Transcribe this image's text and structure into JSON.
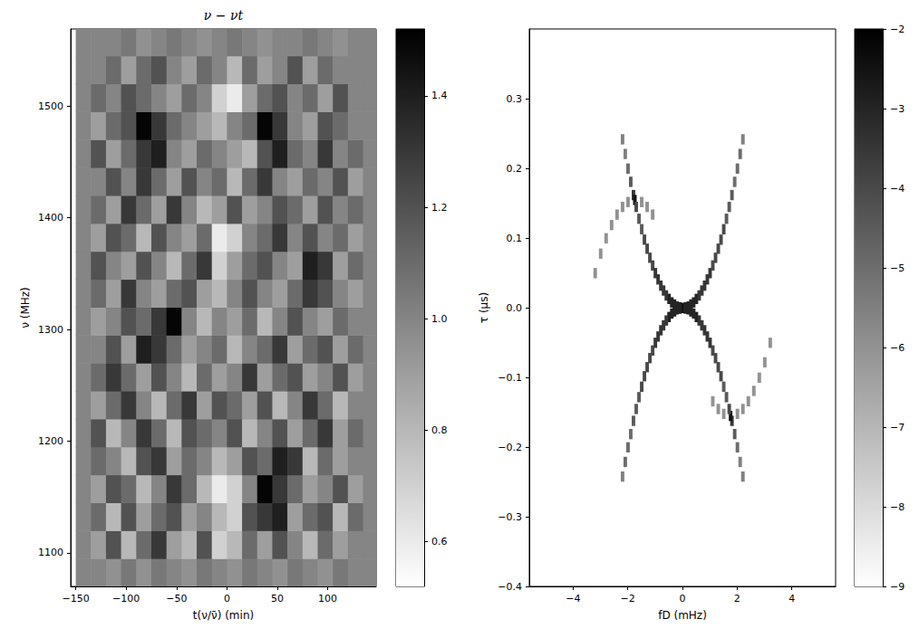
{
  "chart_data": [
    {
      "type": "heatmap",
      "title": "ν − νt",
      "x_label": "t(ν/ν̄) (min)",
      "y_label": "ν (MHz)",
      "xlim": [
        -155,
        148
      ],
      "xticks": [
        {
          "value": -150,
          "label": "−150"
        },
        {
          "value": -100,
          "label": "−100"
        },
        {
          "value": -50,
          "label": "−50"
        },
        0,
        50,
        100
      ],
      "ylim": [
        1070,
        1569
      ],
      "yticks": [
        1100,
        1200,
        1300,
        1400,
        1500
      ],
      "x": [
        -142.5,
        -127.5,
        -112.5,
        -97.5,
        -82.5,
        -67.5,
        -52.5,
        -37.5,
        -22.5,
        -7.5,
        7.5,
        22.5,
        37.5,
        52.5,
        67.5,
        82.5,
        97.5,
        112.5,
        127.5,
        142.5
      ],
      "y": [
        1082.5,
        1107.5,
        1132.5,
        1157.5,
        1182.5,
        1207.5,
        1232.5,
        1257.5,
        1282.5,
        1307.5,
        1332.5,
        1357.5,
        1382.5,
        1407.5,
        1432.5,
        1457.5,
        1482.5,
        1507.5,
        1532.5,
        1557.5
      ],
      "z": [
        [
          1.0,
          1.0,
          0.95,
          1.05,
          0.95,
          1.05,
          1.0,
          0.95,
          1.05,
          1.0,
          0.95,
          1.05,
          1.0,
          0.95,
          1.05,
          1.0,
          0.95,
          1.05,
          1.0,
          1.0
        ],
        [
          1.0,
          0.9,
          1.2,
          0.8,
          1.1,
          1.3,
          0.9,
          0.8,
          1.2,
          0.7,
          0.8,
          1.1,
          0.9,
          1.2,
          1.0,
          0.8,
          1.1,
          0.9,
          1.0,
          1.0
        ],
        [
          1.0,
          1.1,
          0.8,
          1.2,
          0.9,
          1.1,
          1.2,
          0.9,
          1.0,
          0.8,
          0.7,
          1.2,
          1.3,
          1.4,
          0.9,
          1.1,
          1.2,
          0.8,
          1.1,
          1.0
        ],
        [
          1.0,
          0.9,
          1.2,
          1.1,
          0.8,
          1.0,
          1.3,
          1.1,
          0.8,
          0.6,
          0.7,
          1.0,
          1.5,
          1.3,
          1.1,
          0.9,
          1.0,
          1.2,
          0.9,
          1.0
        ],
        [
          1.0,
          1.1,
          1.0,
          0.8,
          1.2,
          1.3,
          0.9,
          1.1,
          1.0,
          0.8,
          0.9,
          1.2,
          1.1,
          1.4,
          1.3,
          0.8,
          1.1,
          0.9,
          1.0,
          1.0
        ],
        [
          1.0,
          1.2,
          0.8,
          1.0,
          1.3,
          1.1,
          0.8,
          1.2,
          1.1,
          1.0,
          1.2,
          0.8,
          1.0,
          1.2,
          0.9,
          1.1,
          1.3,
          0.9,
          1.1,
          1.0
        ],
        [
          1.0,
          0.9,
          1.1,
          1.3,
          1.0,
          0.8,
          1.1,
          1.3,
          0.9,
          1.2,
          1.1,
          0.9,
          1.2,
          0.8,
          1.0,
          1.3,
          1.1,
          0.8,
          1.0,
          1.0
        ],
        [
          1.0,
          1.1,
          1.3,
          1.1,
          0.9,
          1.2,
          1.0,
          0.8,
          1.1,
          0.9,
          1.0,
          1.3,
          0.9,
          1.1,
          1.2,
          0.9,
          1.0,
          1.2,
          0.9,
          1.0
        ],
        [
          1.0,
          1.0,
          1.2,
          0.9,
          1.4,
          1.3,
          1.1,
          0.9,
          1.0,
          1.1,
          0.8,
          1.0,
          1.1,
          1.3,
          0.9,
          1.1,
          1.2,
          0.9,
          1.1,
          1.0
        ],
        [
          1.0,
          0.9,
          1.0,
          1.2,
          1.1,
          1.3,
          1.5,
          1.0,
          0.8,
          1.0,
          0.9,
          1.1,
          0.8,
          1.0,
          1.2,
          1.0,
          0.9,
          1.1,
          1.0,
          1.0
        ],
        [
          1.0,
          1.1,
          0.9,
          1.3,
          1.0,
          0.9,
          1.1,
          1.2,
          0.9,
          0.8,
          1.0,
          1.2,
          1.0,
          0.9,
          1.1,
          1.3,
          1.2,
          1.0,
          0.9,
          1.0
        ],
        [
          1.0,
          1.2,
          1.0,
          0.9,
          1.2,
          1.0,
          0.8,
          1.1,
          1.3,
          0.7,
          0.9,
          1.1,
          1.2,
          1.0,
          0.9,
          1.4,
          1.3,
          0.9,
          1.1,
          1.0
        ],
        [
          1.0,
          0.9,
          1.2,
          1.1,
          0.8,
          1.2,
          1.0,
          0.9,
          1.1,
          0.6,
          0.7,
          1.0,
          1.1,
          1.3,
          1.0,
          1.2,
          1.0,
          1.1,
          0.9,
          1.0
        ],
        [
          1.0,
          1.1,
          0.9,
          1.3,
          1.1,
          0.9,
          1.3,
          1.0,
          0.8,
          0.9,
          1.2,
          0.9,
          1.0,
          1.2,
          1.1,
          0.9,
          1.2,
          1.0,
          1.1,
          1.0
        ],
        [
          1.0,
          1.0,
          1.2,
          1.0,
          1.3,
          1.1,
          0.9,
          1.2,
          1.0,
          1.1,
          0.8,
          1.1,
          1.3,
          1.0,
          0.9,
          1.1,
          1.0,
          1.2,
          0.9,
          1.0
        ],
        [
          1.0,
          1.2,
          0.9,
          1.1,
          1.3,
          1.4,
          1.0,
          0.9,
          1.1,
          1.0,
          0.9,
          0.8,
          1.2,
          1.4,
          1.1,
          1.0,
          1.3,
          1.0,
          1.1,
          1.0
        ],
        [
          1.0,
          0.9,
          1.1,
          1.2,
          1.5,
          1.3,
          1.1,
          1.0,
          0.9,
          0.8,
          1.0,
          1.1,
          1.5,
          1.3,
          1.0,
          0.9,
          1.2,
          1.1,
          1.0,
          1.0
        ],
        [
          1.0,
          1.1,
          1.0,
          1.2,
          1.1,
          1.0,
          0.9,
          1.1,
          1.0,
          0.7,
          0.6,
          0.9,
          1.1,
          1.2,
          1.0,
          1.1,
          0.9,
          1.2,
          1.0,
          1.0
        ],
        [
          1.0,
          1.0,
          1.1,
          0.9,
          1.1,
          1.2,
          1.0,
          0.9,
          1.1,
          1.0,
          0.8,
          1.1,
          0.9,
          1.0,
          1.2,
          0.9,
          1.1,
          1.0,
          1.0,
          1.0
        ],
        [
          1.0,
          1.0,
          1.0,
          1.05,
          0.95,
          1.0,
          1.05,
          1.0,
          0.95,
          1.0,
          1.05,
          1.0,
          0.95,
          1.0,
          1.0,
          1.05,
          1.0,
          0.95,
          1.0,
          1.0
        ]
      ],
      "colorbar": {
        "range": [
          0.52,
          1.52
        ],
        "ticks": [
          0.6,
          0.8,
          {
            "value": 1,
            "label": "1.0"
          },
          1.2,
          1.4
        ]
      }
    },
    {
      "type": "heatmap",
      "x_label": "fD (mHz)",
      "y_label": "τ (µs)",
      "xlim": [
        -5.6,
        5.6
      ],
      "xticks": [
        {
          "value": -4,
          "label": "−4"
        },
        {
          "value": -2,
          "label": "−2"
        },
        0,
        2,
        4
      ],
      "ylim": [
        -0.4,
        0.4
      ],
      "yticks": [
        {
          "value": -0.4,
          "label": "−0.4"
        },
        {
          "value": -0.3,
          "label": "−0.3"
        },
        {
          "value": -0.2,
          "label": "−0.2"
        },
        {
          "value": -0.1,
          "label": "−0.1"
        },
        {
          "value": 0,
          "label": "0.0"
        },
        0.1,
        0.2,
        0.3
      ],
      "cells": [
        [
          -3.2,
          0.05,
          -6
        ],
        [
          -3.0,
          0.078,
          -6
        ],
        [
          -2.8,
          0.1,
          -6
        ],
        [
          -2.6,
          0.119,
          -6
        ],
        [
          -2.4,
          0.134,
          -6
        ],
        [
          -2.2,
          0.145,
          -6
        ],
        [
          -2.0,
          0.152,
          -6
        ],
        [
          -1.5,
          0.152,
          -6
        ],
        [
          -1.3,
          0.145,
          -6
        ],
        [
          -1.1,
          0.134,
          -6
        ],
        [
          3.2,
          -0.05,
          -6
        ],
        [
          3.0,
          -0.078,
          -6
        ],
        [
          2.8,
          -0.1,
          -6
        ],
        [
          2.6,
          -0.119,
          -6
        ],
        [
          2.4,
          -0.134,
          -6
        ],
        [
          2.2,
          -0.145,
          -6
        ],
        [
          2.0,
          -0.152,
          -6
        ],
        [
          1.5,
          -0.152,
          -6
        ],
        [
          1.3,
          -0.145,
          -6
        ],
        [
          1.1,
          -0.134,
          -6
        ],
        [
          -2.2,
          0.242,
          -5.5
        ],
        [
          -2.1,
          0.221,
          -5.5
        ],
        [
          -2.0,
          0.2,
          -5
        ],
        [
          -1.9,
          0.181,
          -4.5
        ],
        [
          -1.8,
          0.162,
          -3.5
        ],
        [
          -1.75,
          0.155,
          -2.5
        ],
        [
          -1.7,
          0.145,
          -4
        ],
        [
          -1.6,
          0.128,
          -4.5
        ],
        [
          -1.5,
          0.113,
          -4.5
        ],
        [
          -1.4,
          0.098,
          -4
        ],
        [
          -1.3,
          0.085,
          -4
        ],
        [
          -1.2,
          0.072,
          -4
        ],
        [
          -1.1,
          0.061,
          -4
        ],
        [
          -1.0,
          0.05,
          -3.5
        ],
        [
          -0.9,
          0.041,
          -3.5
        ],
        [
          -0.8,
          0.032,
          -3.5
        ],
        [
          -0.7,
          0.025,
          -3.5
        ],
        [
          -0.6,
          0.018,
          -3.5
        ],
        [
          -0.5,
          0.013,
          -3
        ],
        [
          -0.4,
          0.008,
          -3
        ],
        [
          -0.3,
          0.005,
          -3
        ],
        [
          -0.2,
          0.002,
          -3
        ],
        [
          -0.1,
          0.001,
          -3
        ],
        [
          0,
          0,
          -2.5
        ],
        [
          0.1,
          0.001,
          -3
        ],
        [
          0.2,
          0.002,
          -3
        ],
        [
          0.3,
          0.005,
          -3
        ],
        [
          0.4,
          0.008,
          -3
        ],
        [
          0.5,
          0.013,
          -3
        ],
        [
          0.6,
          0.018,
          -3.5
        ],
        [
          0.7,
          0.025,
          -3.5
        ],
        [
          0.8,
          0.032,
          -3.5
        ],
        [
          0.9,
          0.041,
          -3.5
        ],
        [
          1.0,
          0.05,
          -3.5
        ],
        [
          1.1,
          0.061,
          -4
        ],
        [
          1.2,
          0.072,
          -4
        ],
        [
          1.3,
          0.085,
          -4
        ],
        [
          1.4,
          0.098,
          -4
        ],
        [
          1.5,
          0.113,
          -4
        ],
        [
          1.6,
          0.128,
          -4.5
        ],
        [
          1.7,
          0.145,
          -4.5
        ],
        [
          1.8,
          0.162,
          -4.5
        ],
        [
          1.9,
          0.181,
          -5
        ],
        [
          2.0,
          0.2,
          -5
        ],
        [
          2.1,
          0.221,
          -5
        ],
        [
          2.2,
          0.242,
          -5.5
        ],
        [
          2.2,
          -0.242,
          -5.5
        ],
        [
          2.1,
          -0.221,
          -5.5
        ],
        [
          2.0,
          -0.2,
          -5
        ],
        [
          1.9,
          -0.181,
          -4.5
        ],
        [
          1.8,
          -0.162,
          -3.5
        ],
        [
          1.75,
          -0.155,
          -2.5
        ],
        [
          1.7,
          -0.145,
          -4
        ],
        [
          1.6,
          -0.128,
          -4.5
        ],
        [
          1.5,
          -0.113,
          -4.5
        ],
        [
          1.4,
          -0.098,
          -4
        ],
        [
          1.3,
          -0.085,
          -4
        ],
        [
          1.2,
          -0.072,
          -4
        ],
        [
          1.1,
          -0.061,
          -4
        ],
        [
          1.0,
          -0.05,
          -3.5
        ],
        [
          0.9,
          -0.041,
          -3.5
        ],
        [
          0.8,
          -0.032,
          -3.5
        ],
        [
          0.7,
          -0.025,
          -3.5
        ],
        [
          0.6,
          -0.018,
          -3.5
        ],
        [
          0.5,
          -0.013,
          -3
        ],
        [
          0.4,
          -0.008,
          -3
        ],
        [
          0.3,
          -0.005,
          -3
        ],
        [
          0.2,
          -0.002,
          -3
        ],
        [
          0.1,
          -0.001,
          -3
        ],
        [
          -0.1,
          -0.001,
          -3
        ],
        [
          -0.2,
          -0.002,
          -3
        ],
        [
          -0.3,
          -0.005,
          -3
        ],
        [
          -0.4,
          -0.008,
          -3
        ],
        [
          -0.5,
          -0.013,
          -3
        ],
        [
          -0.6,
          -0.018,
          -3.5
        ],
        [
          -0.7,
          -0.025,
          -3.5
        ],
        [
          -0.8,
          -0.032,
          -3.5
        ],
        [
          -0.9,
          -0.041,
          -3.5
        ],
        [
          -1.0,
          -0.05,
          -3.5
        ],
        [
          -1.1,
          -0.061,
          -4
        ],
        [
          -1.2,
          -0.072,
          -4
        ],
        [
          -1.3,
          -0.085,
          -4
        ],
        [
          -1.4,
          -0.098,
          -4
        ],
        [
          -1.5,
          -0.113,
          -4
        ],
        [
          -1.6,
          -0.128,
          -4.5
        ],
        [
          -1.7,
          -0.145,
          -4.5
        ],
        [
          -1.8,
          -0.162,
          -4.5
        ],
        [
          -1.9,
          -0.181,
          -5
        ],
        [
          -2.0,
          -0.2,
          -5
        ],
        [
          -2.1,
          -0.221,
          -5
        ],
        [
          -2.2,
          -0.242,
          -5.5
        ]
      ],
      "colorbar": {
        "range": [
          -9,
          -2
        ],
        "ticks": [
          {
            "value": -9,
            "label": "−9"
          },
          {
            "value": -8,
            "label": "−8"
          },
          {
            "value": -7,
            "label": "−7"
          },
          {
            "value": -6,
            "label": "−6"
          },
          {
            "value": -5,
            "label": "−5"
          },
          {
            "value": -4,
            "label": "−4"
          },
          {
            "value": -3,
            "label": "−3"
          },
          {
            "value": -2,
            "label": "−2"
          }
        ]
      }
    }
  ]
}
